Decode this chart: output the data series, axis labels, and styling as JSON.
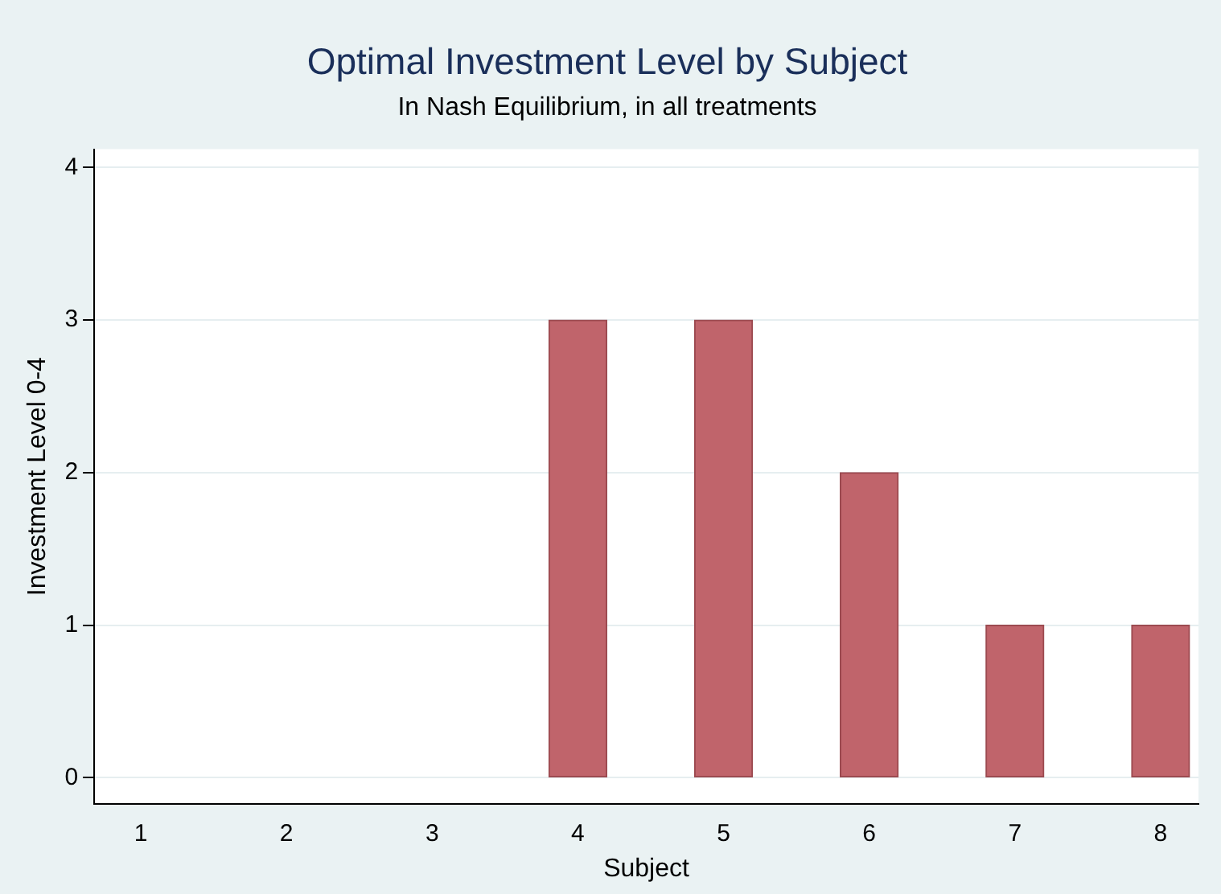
{
  "chart_data": {
    "type": "bar",
    "title": "Optimal Investment Level by Subject",
    "subtitle": "In Nash Equilibrium, in all treatments",
    "xlabel": "Subject",
    "ylabel": "Investment Level 0-4",
    "x": [
      1,
      2,
      3,
      4,
      5,
      6,
      7,
      8
    ],
    "values": [
      0,
      0,
      0,
      3,
      3,
      2,
      1,
      1
    ],
    "color": "#c0646b",
    "xlim": [
      0.68,
      8.26
    ],
    "xticks": [
      1,
      2,
      3,
      4,
      5,
      6,
      7,
      8
    ],
    "ylim": [
      -0.17,
      4.12
    ],
    "yticks": [
      0,
      1,
      2,
      3,
      4
    ],
    "grid": "y"
  }
}
